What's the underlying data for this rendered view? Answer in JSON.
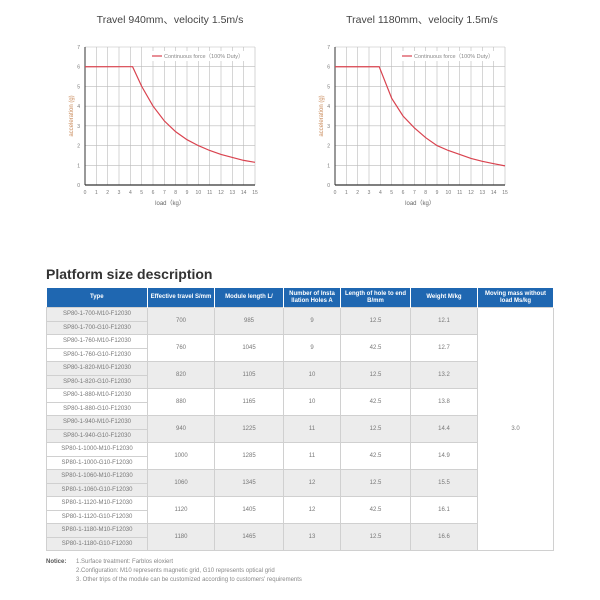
{
  "charts": [
    {
      "title": "Travel 940mm、velocity 1.5m/s",
      "legend": "Continuous force（100% Duty）",
      "xlabel": "load（kg）",
      "ylabel": "acceleration (g)"
    },
    {
      "title": "Travel 1180mm、velocity 1.5m/s",
      "legend": "Continuous force（100% Duty）",
      "xlabel": "load（kg）",
      "ylabel": "acceleration (g)"
    }
  ],
  "chart_data": [
    {
      "type": "line",
      "title": "Travel 940mm、velocity 1.5m/s",
      "xlabel": "load（kg）",
      "ylabel": "acceleration (g)",
      "xlim": [
        0,
        15
      ],
      "ylim": [
        0,
        7
      ],
      "xticks": [
        0,
        1,
        2,
        3,
        4,
        5,
        6,
        7,
        8,
        9,
        10,
        11,
        12,
        13,
        14,
        15
      ],
      "yticks": [
        0,
        1,
        2,
        3,
        4,
        5,
        6,
        7
      ],
      "grid": true,
      "legend_position": "top-right",
      "series": [
        {
          "name": "Continuous force（100% Duty）",
          "color": "#d9434f",
          "x": [
            0,
            4.2,
            5,
            6,
            7,
            8,
            9,
            10,
            11,
            12,
            13,
            14,
            15
          ],
          "y": [
            6,
            6,
            5.0,
            4.0,
            3.25,
            2.7,
            2.3,
            2.0,
            1.75,
            1.55,
            1.4,
            1.25,
            1.15
          ]
        }
      ]
    },
    {
      "type": "line",
      "title": "Travel 1180mm、velocity 1.5m/s",
      "xlabel": "load（kg）",
      "ylabel": "acceleration (g)",
      "xlim": [
        0,
        15
      ],
      "ylim": [
        0,
        7
      ],
      "xticks": [
        0,
        1,
        2,
        3,
        4,
        5,
        6,
        7,
        8,
        9,
        10,
        11,
        12,
        13,
        14,
        15
      ],
      "yticks": [
        0,
        1,
        2,
        3,
        4,
        5,
        6,
        7
      ],
      "grid": true,
      "legend_position": "top-right",
      "series": [
        {
          "name": "Continuous force（100% Duty）",
          "color": "#d9434f",
          "x": [
            0,
            3.9,
            5,
            6,
            7,
            8,
            9,
            10,
            11,
            12,
            13,
            14,
            15
          ],
          "y": [
            6,
            6,
            4.4,
            3.5,
            2.9,
            2.4,
            2.0,
            1.75,
            1.55,
            1.35,
            1.2,
            1.08,
            0.97
          ]
        }
      ]
    }
  ],
  "section": {
    "title": "Platform size description"
  },
  "table": {
    "headers": [
      "Type",
      "Effective travel S/mm",
      "Module length L/",
      "Number of Insta llation Holes A",
      "Length of hole to end B/mm",
      "Weight M/kg",
      "Moving mass without load Ms/kg"
    ],
    "groups": [
      {
        "types": [
          "SP80-1-700-M10-F12030",
          "SP80-1-700-G10-F12030"
        ],
        "travel": "700",
        "length": "985",
        "holes": "9",
        "hole_end": "12.5",
        "weight": "12.1"
      },
      {
        "types": [
          "SP80-1-760-M10-F12030",
          "SP80-1-760-G10-F12030"
        ],
        "travel": "760",
        "length": "1045",
        "holes": "9",
        "hole_end": "42.5",
        "weight": "12.7"
      },
      {
        "types": [
          "SP80-1-820-M10-F12030",
          "SP80-1-820-G10-F12030"
        ],
        "travel": "820",
        "length": "1105",
        "holes": "10",
        "hole_end": "12.5",
        "weight": "13.2"
      },
      {
        "types": [
          "SP80-1-880-M10-F12030",
          "SP80-1-880-G10-F12030"
        ],
        "travel": "880",
        "length": "1165",
        "holes": "10",
        "hole_end": "42.5",
        "weight": "13.8"
      },
      {
        "types": [
          "SP80-1-940-M10-F12030",
          "SP80-1-940-G10-F12030"
        ],
        "travel": "940",
        "length": "1225",
        "holes": "11",
        "hole_end": "12.5",
        "weight": "14.4"
      },
      {
        "types": [
          "SP80-1-1000-M10-F12030",
          "SP80-1-1000-G10-F12030"
        ],
        "travel": "1000",
        "length": "1285",
        "holes": "11",
        "hole_end": "42.5",
        "weight": "14.9"
      },
      {
        "types": [
          "SP80-1-1060-M10-F12030",
          "SP80-1-1060-G10-F12030"
        ],
        "travel": "1060",
        "length": "1345",
        "holes": "12",
        "hole_end": "12.5",
        "weight": "15.5"
      },
      {
        "types": [
          "SP80-1-1120-M10-F12030",
          "SP80-1-1120-G10-F12030"
        ],
        "travel": "1120",
        "length": "1405",
        "holes": "12",
        "hole_end": "42.5",
        "weight": "16.1"
      },
      {
        "types": [
          "SP80-1-1180-M10-F12030",
          "SP80-1-1180-G10-F12030"
        ],
        "travel": "1180",
        "length": "1465",
        "holes": "13",
        "hole_end": "12.5",
        "weight": "16.6"
      }
    ],
    "moving_mass": "3.0"
  },
  "notice": {
    "label": "Notice:",
    "items": [
      "1.Surface treatment: Farblos eloxiert",
      "2.Configuration: M10 represents magnetic grid, G10 represents optical grid",
      "3. Other trips of the module can be customized according to customers' requirements"
    ]
  }
}
